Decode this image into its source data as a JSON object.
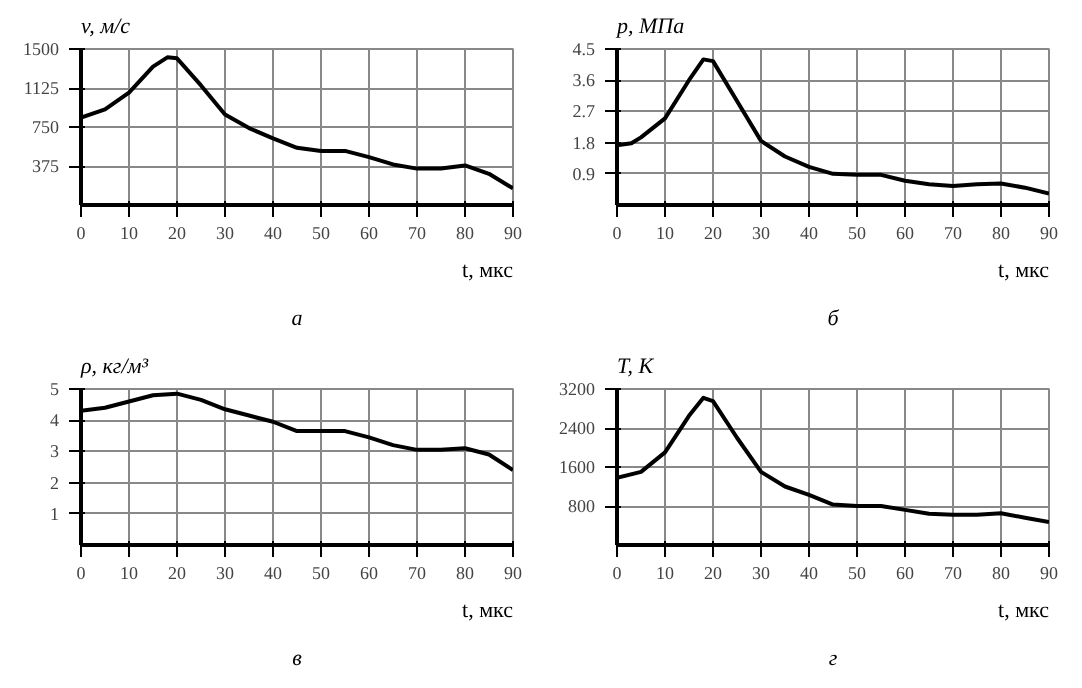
{
  "chart_data": [
    {
      "type": "line",
      "ylabel": "v, м/с",
      "xlabel": "t, мкс",
      "annotations": [
        "а"
      ],
      "xlim": [
        0,
        90
      ],
      "xticks": [
        0,
        10,
        20,
        30,
        40,
        50,
        60,
        70,
        80,
        90
      ],
      "ylim": [
        0,
        1500
      ],
      "yticks": [
        375,
        750,
        1125,
        1500
      ],
      "grid": true,
      "x": [
        0,
        5,
        10,
        15,
        18,
        20,
        25,
        30,
        35,
        40,
        45,
        50,
        55,
        60,
        65,
        70,
        75,
        80,
        85,
        90
      ],
      "series": [
        {
          "color": "#000000",
          "values": [
            840,
            920,
            1080,
            1330,
            1420,
            1410,
            1150,
            870,
            740,
            640,
            550,
            520,
            520,
            460,
            390,
            350,
            350,
            380,
            300,
            160
          ]
        }
      ]
    },
    {
      "type": "line",
      "ylabel": "p, МПа",
      "xlabel": "t, мкс",
      "annotations": [
        "б"
      ],
      "xlim": [
        0,
        90
      ],
      "xticks": [
        0,
        10,
        20,
        30,
        40,
        50,
        60,
        70,
        80,
        90
      ],
      "ylim": [
        0,
        4.5
      ],
      "yticks": [
        0.9,
        1.8,
        2.7,
        3.6,
        4.5
      ],
      "grid": true,
      "x": [
        0,
        3,
        5,
        10,
        15,
        18,
        20,
        25,
        30,
        35,
        40,
        45,
        50,
        55,
        60,
        65,
        70,
        75,
        80,
        85,
        90
      ],
      "series": [
        {
          "color": "#000000",
          "values": [
            1.72,
            1.78,
            1.95,
            2.5,
            3.6,
            4.2,
            4.15,
            3.0,
            1.85,
            1.4,
            1.1,
            0.9,
            0.87,
            0.87,
            0.7,
            0.6,
            0.55,
            0.6,
            0.62,
            0.5,
            0.33
          ]
        }
      ]
    },
    {
      "type": "line",
      "ylabel": "ρ, кг/м³",
      "xlabel": "t, мкс",
      "annotations": [
        "в"
      ],
      "xlim": [
        0,
        90
      ],
      "xticks": [
        0,
        10,
        20,
        30,
        40,
        50,
        60,
        70,
        80,
        90
      ],
      "ylim": [
        0,
        5
      ],
      "yticks": [
        1,
        2,
        3,
        4,
        5
      ],
      "grid": true,
      "x": [
        0,
        5,
        10,
        15,
        20,
        25,
        30,
        35,
        40,
        45,
        50,
        55,
        60,
        65,
        70,
        75,
        80,
        85,
        90
      ],
      "series": [
        {
          "color": "#000000",
          "values": [
            4.3,
            4.4,
            4.6,
            4.8,
            4.85,
            4.65,
            4.35,
            4.15,
            3.95,
            3.65,
            3.65,
            3.65,
            3.45,
            3.2,
            3.05,
            3.05,
            3.1,
            2.9,
            2.4
          ]
        }
      ]
    },
    {
      "type": "line",
      "ylabel": "T, K",
      "xlabel": "t, мкс",
      "annotations": [
        "г"
      ],
      "xlim": [
        0,
        90
      ],
      "xticks": [
        0,
        10,
        20,
        30,
        40,
        50,
        60,
        70,
        80,
        90
      ],
      "ylim": [
        0,
        3200
      ],
      "yticks": [
        800,
        1600,
        2400,
        3200
      ],
      "grid": true,
      "x": [
        0,
        5,
        10,
        15,
        18,
        20,
        25,
        30,
        35,
        40,
        45,
        50,
        55,
        60,
        65,
        70,
        75,
        80,
        85,
        90
      ],
      "series": [
        {
          "color": "#000000",
          "values": [
            1380,
            1500,
            1900,
            2650,
            3020,
            2950,
            2200,
            1500,
            1200,
            1030,
            830,
            800,
            800,
            720,
            640,
            620,
            620,
            650,
            560,
            470
          ]
        }
      ]
    }
  ]
}
